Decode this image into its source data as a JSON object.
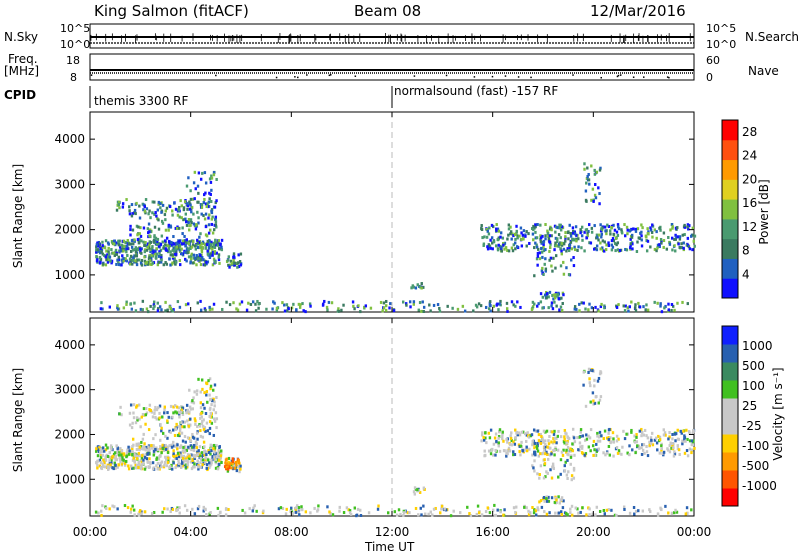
{
  "header": {
    "station": "King Salmon (fitACF)",
    "beam": "Beam 08",
    "date": "12/Mar/2016"
  },
  "strip_labels": {
    "nsky": "N.Sky",
    "freq_line1": "Freq.",
    "freq_line2": "[MHz]",
    "cpid": "CPID",
    "nsearch": "N.Search",
    "nave": "Nave",
    "nsky_ticks": [
      "10^5",
      "10^0"
    ],
    "nsearch_ticks": [
      "10^5",
      "10^0"
    ],
    "freq_ticks": [
      "18",
      "8"
    ],
    "nave_ticks": [
      "60",
      "0"
    ]
  },
  "cpid_segments": [
    {
      "label": "themis 3300 RF",
      "start_hour": 0
    },
    {
      "label": "normalsound (fast) -157 RF",
      "start_hour": 12
    }
  ],
  "colors": {
    "power": [
      "#1010ff",
      "#2060c0",
      "#3a7a60",
      "#4a9a70",
      "#80c040",
      "#e0d020",
      "#ff9a00",
      "#ff5010",
      "#ff0000"
    ],
    "velocity": [
      "#ff0000",
      "#ff5500",
      "#ff9a00",
      "#ffd000",
      "#c8c8c8",
      "#c8c8c8",
      "#40c020",
      "#3a8a60",
      "#2860b0",
      "#1020ff"
    ]
  },
  "chart_data": [
    {
      "type": "heatmap",
      "name": "power",
      "xlabel": "",
      "ylabel": "Slant Range [km]",
      "ylim": [
        180,
        4600
      ],
      "yticks": [
        1000,
        2000,
        3000,
        4000
      ],
      "xlim_hours": [
        0,
        24
      ],
      "colorbar_label": "Power [dB]",
      "colorbar_ticks": [
        "4",
        "8",
        "12",
        "16",
        "20",
        "24",
        "28"
      ],
      "colorbar_range": [
        0,
        30
      ],
      "marker_hour": 12
    },
    {
      "type": "heatmap",
      "name": "velocity",
      "xlabel": "Time UT",
      "ylabel": "Slant Range [km]",
      "ylim": [
        180,
        4600
      ],
      "yticks": [
        1000,
        2000,
        3000,
        4000
      ],
      "xlim_hours": [
        0,
        24
      ],
      "xticks": [
        "00:00",
        "04:00",
        "08:00",
        "12:00",
        "16:00",
        "20:00",
        "00:00"
      ],
      "colorbar_label": "Velocity [m s⁻¹]",
      "colorbar_ticks": [
        "-1000",
        "-500",
        "-100",
        "-25",
        "25",
        "100",
        "500",
        "1000"
      ],
      "marker_hour": 12
    }
  ]
}
